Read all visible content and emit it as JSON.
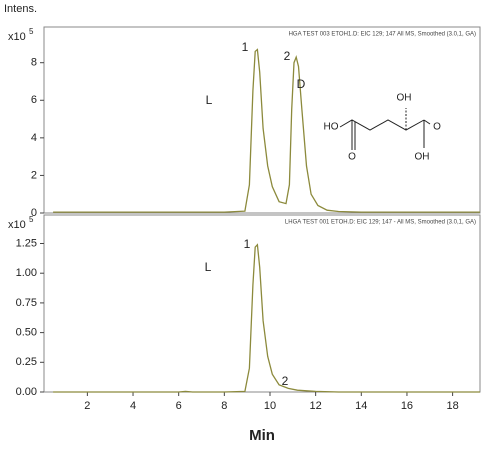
{
  "chart_data": [
    {
      "type": "line",
      "subtitle": "HGA TEST 003 ETOH1.D: EIC 129; 147 All MS, Smoothed (3.0,1, GA)",
      "ylabel": "Intens.",
      "y_multiplier": {
        "base": "x10",
        "exponent": "5"
      },
      "xlim": [
        0.1,
        19.2
      ],
      "ylim": [
        0,
        9.9
      ],
      "yticks": [
        0,
        2,
        4,
        6,
        8
      ],
      "series": [
        {
          "color": "#8c8a3c",
          "x": [
            0.5,
            2,
            4,
            6,
            8,
            8.9,
            9.1,
            9.25,
            9.35,
            9.45,
            9.55,
            9.7,
            9.9,
            10.1,
            10.4,
            10.7,
            10.85,
            10.95,
            11.05,
            11.15,
            11.25,
            11.4,
            11.6,
            11.8,
            12.1,
            12.5,
            13,
            14,
            16,
            18,
            19.2
          ],
          "values": [
            0.05,
            0.05,
            0.05,
            0.05,
            0.05,
            0.1,
            1.5,
            6.5,
            8.6,
            8.7,
            7.5,
            4.5,
            2.5,
            1.4,
            0.6,
            0.5,
            1.5,
            5.5,
            8.0,
            8.3,
            7.8,
            5.5,
            2.5,
            1.0,
            0.4,
            0.15,
            0.08,
            0.05,
            0.05,
            0.05,
            0.05
          ]
        }
      ],
      "annotations": [
        "1",
        "2",
        "L",
        "D"
      ],
      "structure_labels": [
        "HO",
        "O",
        "OH",
        "O",
        "OH"
      ]
    },
    {
      "type": "line",
      "subtitle": "LHGA TEST 001 ETOH.D: EIC 129; 147 - All MS, Smoothed (3.0,1, GA)",
      "y_multiplier": {
        "base": "x10",
        "exponent": "5"
      },
      "xlabel": "Min",
      "xlim": [
        0.1,
        19.2
      ],
      "ylim": [
        0,
        1.49
      ],
      "xticks": [
        2,
        4,
        6,
        8,
        10,
        12,
        14,
        16,
        18
      ],
      "yticks": [
        {
          "value": 0,
          "label": "0.00"
        },
        {
          "value": 0.25,
          "label": "0.25"
        },
        {
          "value": 0.5,
          "label": "0.50"
        },
        {
          "value": 0.75,
          "label": "0.75"
        },
        {
          "value": 1.0,
          "label": "1.00"
        },
        {
          "value": 1.25,
          "label": "1.25"
        }
      ],
      "series": [
        {
          "color": "#8c8a3c",
          "x": [
            0.5,
            2,
            4,
            6,
            6.3,
            6.6,
            8,
            8.9,
            9.1,
            9.25,
            9.35,
            9.45,
            9.55,
            9.7,
            9.9,
            10.1,
            10.4,
            10.8,
            11.2,
            11.6,
            12,
            13,
            14,
            16,
            18,
            19.2
          ],
          "values": [
            0,
            0,
            0,
            0,
            0.005,
            0,
            0,
            0.005,
            0.2,
            0.9,
            1.22,
            1.24,
            1.05,
            0.6,
            0.3,
            0.15,
            0.06,
            0.03,
            0.015,
            0.01,
            0.005,
            0,
            0,
            0,
            0,
            0
          ]
        }
      ],
      "annotations": [
        "L",
        "1",
        "2"
      ]
    }
  ]
}
